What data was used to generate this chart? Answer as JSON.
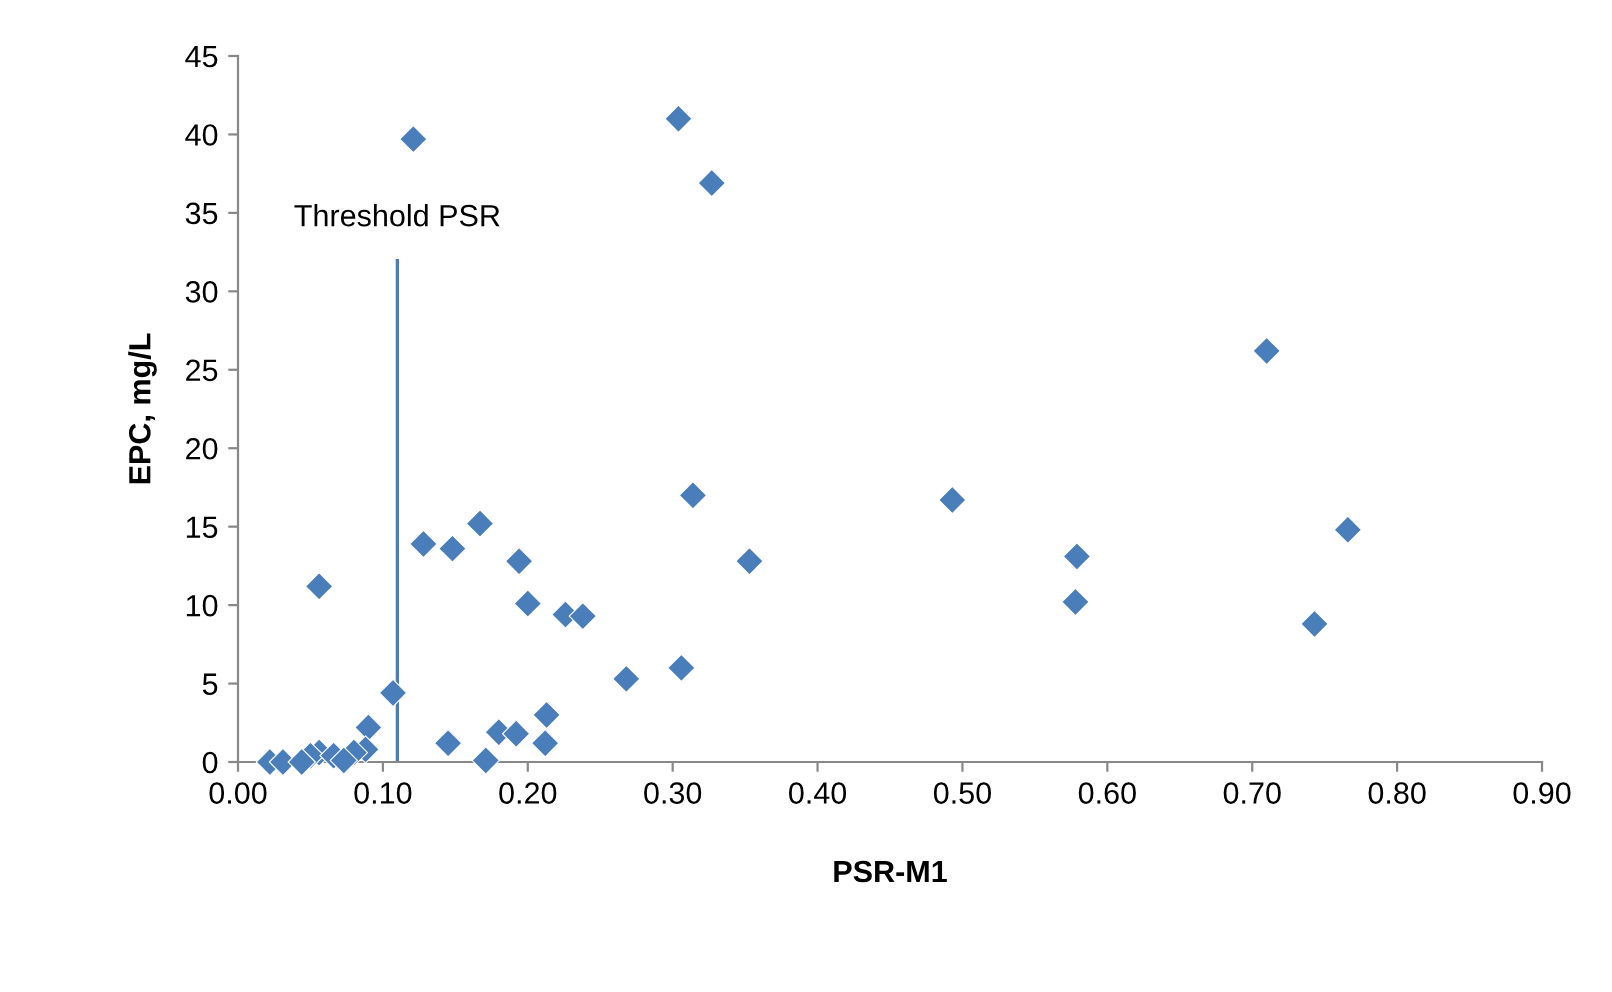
{
  "chart_data": {
    "type": "scatter",
    "xlabel": "PSR-M1",
    "ylabel": "EPC, mg/L",
    "marker": "diamond",
    "grid": false,
    "legend": false,
    "xlim": [
      0,
      0.9
    ],
    "xticks": [
      {
        "value": 0,
        "label": "0.00"
      },
      {
        "value": 0.1,
        "label": "0.10"
      },
      {
        "value": 0.2,
        "label": "0.20"
      },
      {
        "value": 0.3,
        "label": "0.30"
      },
      {
        "value": 0.4,
        "label": "0.40"
      },
      {
        "value": 0.5,
        "label": "0.50"
      },
      {
        "value": 0.6,
        "label": "0.60"
      },
      {
        "value": 0.7,
        "label": "0.70"
      },
      {
        "value": 0.8,
        "label": "0.80"
      },
      {
        "value": 0.9,
        "label": "0.90"
      }
    ],
    "ylim": [
      0,
      45
    ],
    "yticks": [
      0,
      5,
      10,
      15,
      20,
      25,
      30,
      35,
      40,
      45
    ],
    "ref_lines": [
      {
        "axis": "x",
        "value": 0.11,
        "label": "Threshold PSR",
        "color": "#4a7ebb"
      }
    ],
    "series": [
      {
        "color": "#4a7ebb",
        "x": [
          0.022,
          0.031,
          0.044,
          0.05,
          0.056,
          0.066,
          0.073,
          0.08,
          0.088,
          0.09,
          0.056,
          0.107,
          0.128,
          0.148,
          0.167,
          0.194,
          0.2,
          0.226,
          0.238,
          0.145,
          0.171,
          0.18,
          0.192,
          0.212,
          0.213,
          0.121,
          0.304,
          0.327,
          0.268,
          0.306,
          0.314,
          0.353,
          0.493,
          0.579,
          0.578,
          0.71,
          0.743,
          0.766
        ],
        "values": [
          0,
          0,
          0,
          0.4,
          0.6,
          0.4,
          0.1,
          0.6,
          0.8,
          2.2,
          11.2,
          4.4,
          13.9,
          13.6,
          15.2,
          12.8,
          10.1,
          9.4,
          9.3,
          1.2,
          0.1,
          1.9,
          1.8,
          1.2,
          3.0,
          39.7,
          41.0,
          36.9,
          5.3,
          6.0,
          17.0,
          12.8,
          16.7,
          13.1,
          10.2,
          26.2,
          8.8,
          14.8
        ]
      }
    ]
  }
}
